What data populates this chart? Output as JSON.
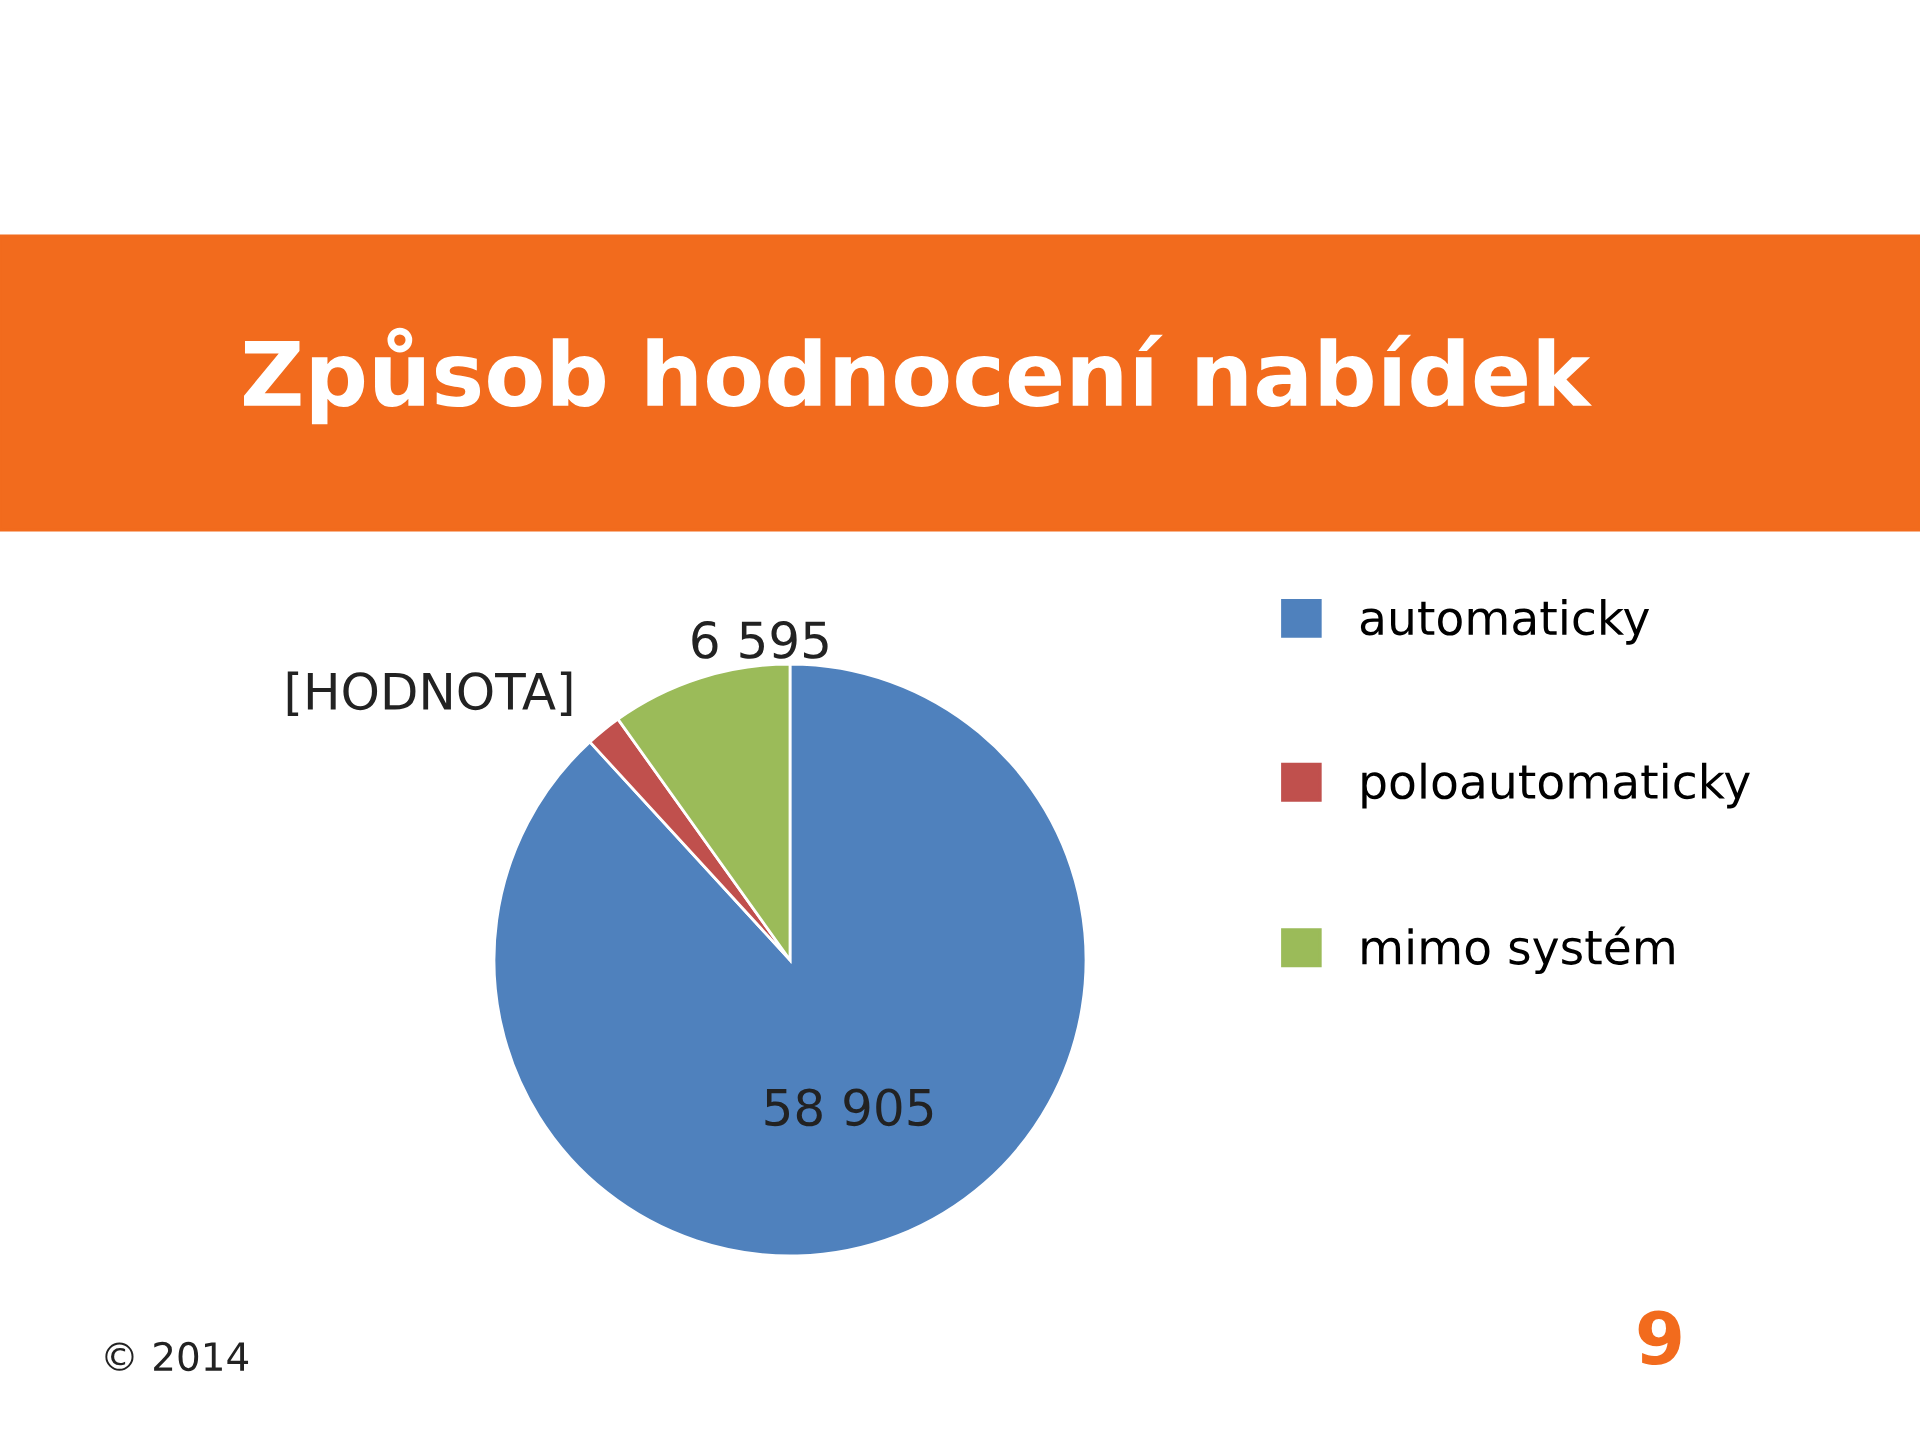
{
  "chart_data": {
    "type": "pie",
    "title": "Způsob hodnocení nabídek",
    "categories": [
      "automaticky",
      "poloautomaticky",
      "mimo systém"
    ],
    "values": [
      58905,
      1300,
      6595
    ],
    "value_labels": [
      "58 905",
      "[HODNOTA]",
      "6 595"
    ],
    "colors": [
      "#4f81bd",
      "#c0504d",
      "#9bbb59"
    ],
    "legend": "right",
    "annotations": [
      "© 2014",
      "9"
    ]
  }
}
